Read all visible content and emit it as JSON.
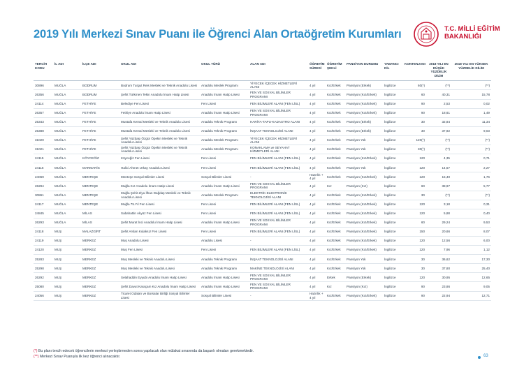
{
  "title": "2019 Yılı Merkezi Sınav Puanı ile Öğrenci Alan Ortaöğretim Kurumları",
  "logo": {
    "line1": "T.C. MİLLİ EĞİTİM",
    "line2": "BAKANLIĞI",
    "icon": "ministry-emblem-icon",
    "color": "#c8102e"
  },
  "headers": [
    "TERCİH KODU",
    "İL ADI",
    "İLÇE ADI",
    "OKUL ADI",
    "OKUL TÜRÜ",
    "ALAN ADI",
    "ÖĞRETİM SÜRESİ",
    "ÖĞRETİM ŞEKLİ",
    "PANSİYON DURUMU",
    "YABANCI DİL",
    "KONTENJANI",
    "2018 YILI EN DÜŞÜK YÜZDELİK DİLİM",
    "2018 YILI EN YÜKSEK YÜZDELİK DİLİM"
  ],
  "rows": [
    [
      "30896",
      "MUĞLA",
      "BODRUM",
      "Bodrum Turgut Reis Mesleki ve Teknik Anadolu Lisesi",
      "Anadolu Meslek Programı",
      "YİYECEK İÇECEK HİZMETLERİ ALANI",
      "4 yıl",
      "Kız/Erkek",
      "Pansiyon (Erkek)",
      "İngilizce",
      "60(*)",
      "(**)",
      "(**)"
    ],
    [
      "26356",
      "MUĞLA",
      "BODRUM",
      "Şehit Türkmen Tekin Anadolu İmam Hatip Lisesi",
      "Anadolu İmam Hatip Lisesi",
      "FEN VE SOSYAL BİLİMLER PROGRAMI",
      "4 yıl",
      "Kız/Erkek",
      "Pansiyon (Kız/Erkek)",
      "İngilizce",
      "60",
      "40,31",
      "15,78"
    ],
    [
      "24114",
      "MUĞLA",
      "FETHİYE",
      "Belediye Fen Lisesi",
      "Fen Lisesi",
      "FEN BİLİMLERİ ALANI (FEN LİSL)",
      "4 yıl",
      "Kız/Erkek",
      "Pansiyon (Kız/Erkek)",
      "İngilizce",
      "90",
      "2,53",
      "0,02"
    ],
    [
      "26357",
      "MUĞLA",
      "FETHİYE",
      "Fethiye Anadolu İmam Hatip Lisesi",
      "Anadolu İmam Hatip Lisesi",
      "FEN VE SOSYAL BİLİMLER PROGRAMI",
      "4 yıl",
      "Kız/Erkek",
      "Pansiyon (Kız/Erkek)",
      "İngilizce",
      "90",
      "18,61",
      "1,49"
    ],
    [
      "25343",
      "MUĞLA",
      "FETHİYE",
      "Mustafa Kemal Mesleki ve Teknik Anadolu Lisesi",
      "Anadolu Teknik Programı",
      "HARİTA-TAPU-KADASTRO ALANI",
      "4 yıl",
      "Kız/Erkek",
      "Pansiyon (Erkek)",
      "İngilizce",
      "30",
      "32,84",
      "11,34"
    ],
    [
      "25388",
      "MUĞLA",
      "FETHİYE",
      "Mustafa Kemal Mesleki ve Teknik Anadolu Lisesi",
      "Anadolu Teknik Programı",
      "İNŞAAT TEKNOLOJİSİ ALANI",
      "4 yıl",
      "Kız/Erkek",
      "Pansiyon (Erkek)",
      "İngilizce",
      "30",
      "37,92",
      "9,03"
    ],
    [
      "31020",
      "MUĞLA",
      "FETHİYE",
      "Şehit Yüzbaşı Özgür Öpekin Mesleki ve Teknik Anadolu Lisesi",
      "Anadolu Meslek Programı",
      "YİYECEK İÇECEK HİZMETLERİ ALANI",
      "4 yıl",
      "Kız/Erkek",
      "Pansiyon Yok",
      "İngilizce",
      "120(*)",
      "(**)",
      "(**)"
    ],
    [
      "31021",
      "MUĞLA",
      "FETHİYE",
      "Şehit Yüzbaşı Özgür Öpekin Mesleki ve Teknik Anadolu Lisesi",
      "Anadolu Meslek Programı",
      "KONAKLAMA ve SEYAHAT HİZMETLERİ ALANI",
      "4 yıl",
      "Kız/Erkek",
      "Pansiyon Yok",
      "İngilizce",
      "30(*)",
      "(**)",
      "(**)"
    ],
    [
      "24115",
      "MUĞLA",
      "KÖYCEĞİZ",
      "Köyceğiz Fen Lisesi",
      "Fen Lisesi",
      "FEN BİLİMLERİ ALANI (FEN LİSL)",
      "4 yıl",
      "Kız/Erkek",
      "Pansiyon (Kız/Erkek)",
      "İngilizce",
      "120",
      "4,35",
      "0,71"
    ],
    [
      "24116",
      "MUĞLA",
      "MARMARİS",
      "Halici Ahmet Urkay Anadolu Lisesi",
      "Fen Lisesi",
      "FEN BİLİMLERİ ALANI (FEN LİSL)",
      "4 yıl",
      "Kız/Erkek",
      "Pansiyon Yok",
      "İngilizce",
      "120",
      "14,57",
      "2,27"
    ],
    [
      "24069",
      "MUĞLA",
      "MENTEŞE",
      "Menteşe Sosyal Bilimler Lisesi",
      "Sosyal Bilimler Lisesi",
      "-",
      "Hazırlık + 4 yıl",
      "Kız/Erkek",
      "Pansiyon (Kız/Erkek)",
      "İngilizce",
      "120",
      "15,40",
      "1,76"
    ],
    [
      "26294",
      "MUĞLA",
      "MENTEŞE",
      "Muğla Kız Anadolu İmam Hatip Lisesi",
      "Anadolu İmam Hatip Lisesi",
      "FEN VE SOSYAL BİLİMLER PROGRAMI",
      "4 yıl",
      "Kız",
      "Pansiyon (Kız)",
      "İngilizce",
      "60",
      "38,97",
      "5,77"
    ],
    [
      "30861",
      "MUĞLA",
      "MENTEŞE",
      "Muğla Şehit Ziya İlhan Dağdaş Mesleki ve Teknik Anadolu Lisesi",
      "Anadolu Meslek Programı",
      "ELEKTRİK-ELEKTRONİK TEKNOLOJİSİ ALANI",
      "4 yıl",
      "Kız/Erkek",
      "Pansiyon (Kız/Erkek)",
      "İngilizce",
      "30",
      "(**)",
      "(**)"
    ],
    [
      "24117",
      "MUĞLA",
      "MENTEŞE",
      "Muğla 75.Yıl Fen Lisesi",
      "Fen Lisesi",
      "FEN BİLİMLERİ ALANI (FEN LİSL)",
      "4 yıl",
      "Kız/Erkek",
      "Pansiyon (Kız/Erkek)",
      "İngilizce",
      "120",
      "3,18",
      "0,31"
    ],
    [
      "24845",
      "MUĞLA",
      "MİLAS",
      "Sabahattin Akyüz Fen Lisesi",
      "Fen Lisesi",
      "FEN BİLİMLERİ ALANI (FEN LİSL)",
      "4 yıl",
      "Kız/Erkek",
      "Pansiyon (Kız/Erkek)",
      "İngilizce",
      "120",
      "5,88",
      "0,40"
    ],
    [
      "26293",
      "MUĞLA",
      "MİLAS",
      "Şehit Murat İnci Anadolu İmam Hatip Lisesi",
      "Anadolu İmam Hatip Lisesi",
      "FEN VE SOSYAL BİLİMLER PROGRAMI",
      "4 yıl",
      "Kız/Erkek",
      "Pansiyon (Kız/Erkek)",
      "İngilizce",
      "60",
      "29,24",
      "9,53"
    ],
    [
      "24118",
      "MUŞ",
      "MALAZGİRT",
      "Şehit Arslan Kulaksız Fen Lisesi",
      "Fen Lisesi",
      "FEN BİLİMLERİ ALANI (FEN LİSL)",
      "4 yıl",
      "Kız/Erkek",
      "Pansiyon (Kız/Erkek)",
      "İngilizce",
      "150",
      "20,66",
      "8,07"
    ],
    [
      "24119",
      "MUŞ",
      "MERKEZ",
      "Muş Anadolu Lisesi",
      "Anadolu Lisesi",
      "-",
      "4 yıl",
      "Kız/Erkek",
      "Pansiyon (Kız/Erkek)",
      "İngilizce",
      "120",
      "12,56",
      "6,00"
    ],
    [
      "24120",
      "MUŞ",
      "MERKEZ",
      "Muş Fen Lisesi",
      "Fen Lisesi",
      "FEN BİLİMLERİ ALANI (FEN LİSL)",
      "4 yıl",
      "Kız/Erkek",
      "Pansiyon (Kız/Erkek)",
      "İngilizce",
      "120",
      "7,96",
      "1,12"
    ],
    [
      "25283",
      "MUŞ",
      "MERKEZ",
      "Muş Mesleki ve Teknik Anadolu Lisesi",
      "Anadolu Teknik Programı",
      "İNŞAAT TEKNOLOJİSİ ALANI",
      "4 yıl",
      "Kız/Erkek",
      "Pansiyon Yok",
      "İngilizce",
      "30",
      "36,62",
      "17,30"
    ],
    [
      "25298",
      "MUŞ",
      "MERKEZ",
      "Muş Mesleki ve Teknik Anadolu Lisesi",
      "Anadolu Teknik Programı",
      "MAKİNE TEKNOLOJİSİ ALANI",
      "4 yıl",
      "Kız/Erkek",
      "Pansiyon Yok",
      "İngilizce",
      "30",
      "37,80",
      "25,40"
    ],
    [
      "26292",
      "MUŞ",
      "MERKEZ",
      "Selahaddin Eyyubi Anadolu İmam Hatip Lisesi",
      "Anadolu İmam Hatip Lisesi",
      "FEN VE SOSYAL BİLİMLER PROGRAMI",
      "4 yıl",
      "Erkek",
      "Pansiyon (Erkek)",
      "İngilizce",
      "120",
      "30,95",
      "12,65"
    ],
    [
      "25080",
      "MUŞ",
      "MERKEZ",
      "Şehit Davut Karaçam Kız Anadolu İmam Hatip Lisesi",
      "Anadolu İmam Hatip Lisesi",
      "FEN VE SOSYAL BİLİMLER PROGRAMI",
      "4 yıl",
      "Kız",
      "Pansiyon (Kız)",
      "İngilizce",
      "90",
      "23,86",
      "9,05"
    ],
    [
      "24056",
      "MUŞ",
      "MERKEZ",
      "Ticaret Odaları ve Borsalar Birliği Sosyal Bilimler Lisesi",
      "Sosyal Bilimler Lisesi",
      "-",
      "Hazırlık + 4 yıl",
      "Kız/Erkek",
      "Pansiyon (Kız/Erkek)",
      "İngilizce",
      "90",
      "22,94",
      "12,71"
    ]
  ],
  "notes": {
    "note1_marker": "(*)",
    "note1_text": " Bu planı tercih edecek öğrencilerin merkezi yerleştirmeden sonra yapılacak olan mülakat sınavında da başarılı olmaları gerekmektedir.",
    "note2_marker": "(**)",
    "note2_text": " Merkezi Sınav Puanıyla ilk kez öğrenci alınacaktır."
  },
  "page_number": "63",
  "colors": {
    "title": "#2e8fc9",
    "accent_red": "#d0103a"
  }
}
